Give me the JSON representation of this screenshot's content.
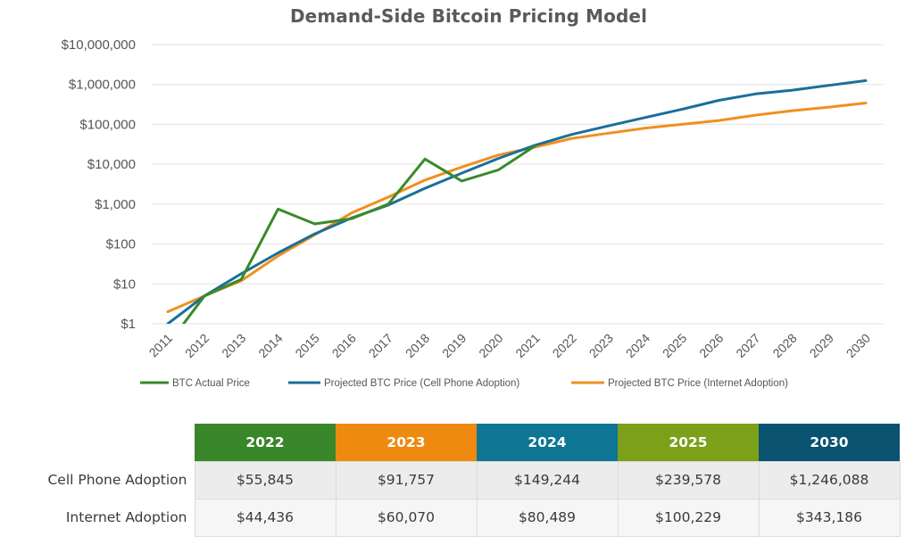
{
  "chart_data": {
    "type": "line",
    "title": "Demand-Side Bitcoin Pricing Model",
    "xlabel": "",
    "ylabel": "",
    "yscale": "log",
    "ylim": [
      1,
      10000000
    ],
    "grid": true,
    "legend_position": "bottom",
    "y_ticks": [
      {
        "value": 10000000,
        "label": "$10,000,000"
      },
      {
        "value": 1000000,
        "label": "$1,000,000"
      },
      {
        "value": 100000,
        "label": "$100,000"
      },
      {
        "value": 10000,
        "label": "$10,000"
      },
      {
        "value": 1000,
        "label": "$1,000"
      },
      {
        "value": 100,
        "label": "$100"
      },
      {
        "value": 10,
        "label": "$10"
      },
      {
        "value": 1,
        "label": "$1"
      }
    ],
    "categories": [
      "2011",
      "2012",
      "2013",
      "2014",
      "2015",
      "2016",
      "2017",
      "2018",
      "2019",
      "2020",
      "2021",
      "2022",
      "2023",
      "2024",
      "2025",
      "2026",
      "2027",
      "2028",
      "2029",
      "2030"
    ],
    "series": [
      {
        "name": "BTC Actual Price",
        "color": "#3a8a2a",
        "values": [
          0.3,
          5,
          13,
          750,
          320,
          430,
          1000,
          13500,
          3800,
          7200,
          29000,
          null,
          null,
          null,
          null,
          null,
          null,
          null,
          null,
          null
        ]
      },
      {
        "name": "Projected BTC Price (Cell Phone Adoption)",
        "color": "#1a6f9a",
        "values": [
          1,
          5,
          18,
          60,
          180,
          450,
          950,
          2500,
          6000,
          14000,
          30000,
          55845,
          91757,
          149244,
          239578,
          400000,
          580000,
          720000,
          950000,
          1246088
        ]
      },
      {
        "name": "Projected BTC Price (Internet Adoption)",
        "color": "#f0901e",
        "values": [
          2,
          5,
          12,
          50,
          170,
          600,
          1500,
          4000,
          8500,
          17000,
          27000,
          44436,
          60070,
          80489,
          100229,
          125000,
          170000,
          220000,
          270000,
          343186
        ]
      }
    ]
  },
  "table": {
    "columns": [
      {
        "label": "2022",
        "color": "#3a862a"
      },
      {
        "label": "2023",
        "color": "#ee8a10"
      },
      {
        "label": "2024",
        "color": "#0e7594"
      },
      {
        "label": "2025",
        "color": "#7ca01a"
      },
      {
        "label": "2030",
        "color": "#0a5370"
      }
    ],
    "rows": [
      {
        "label": "Cell Phone Adoption",
        "values": [
          "$55,845",
          "$91,757",
          "$149,244",
          "$239,578",
          "$1,246,088"
        ]
      },
      {
        "label": "Internet Adoption",
        "values": [
          "$44,436",
          "$60,070",
          "$80,489",
          "$100,229",
          "$343,186"
        ]
      }
    ]
  }
}
